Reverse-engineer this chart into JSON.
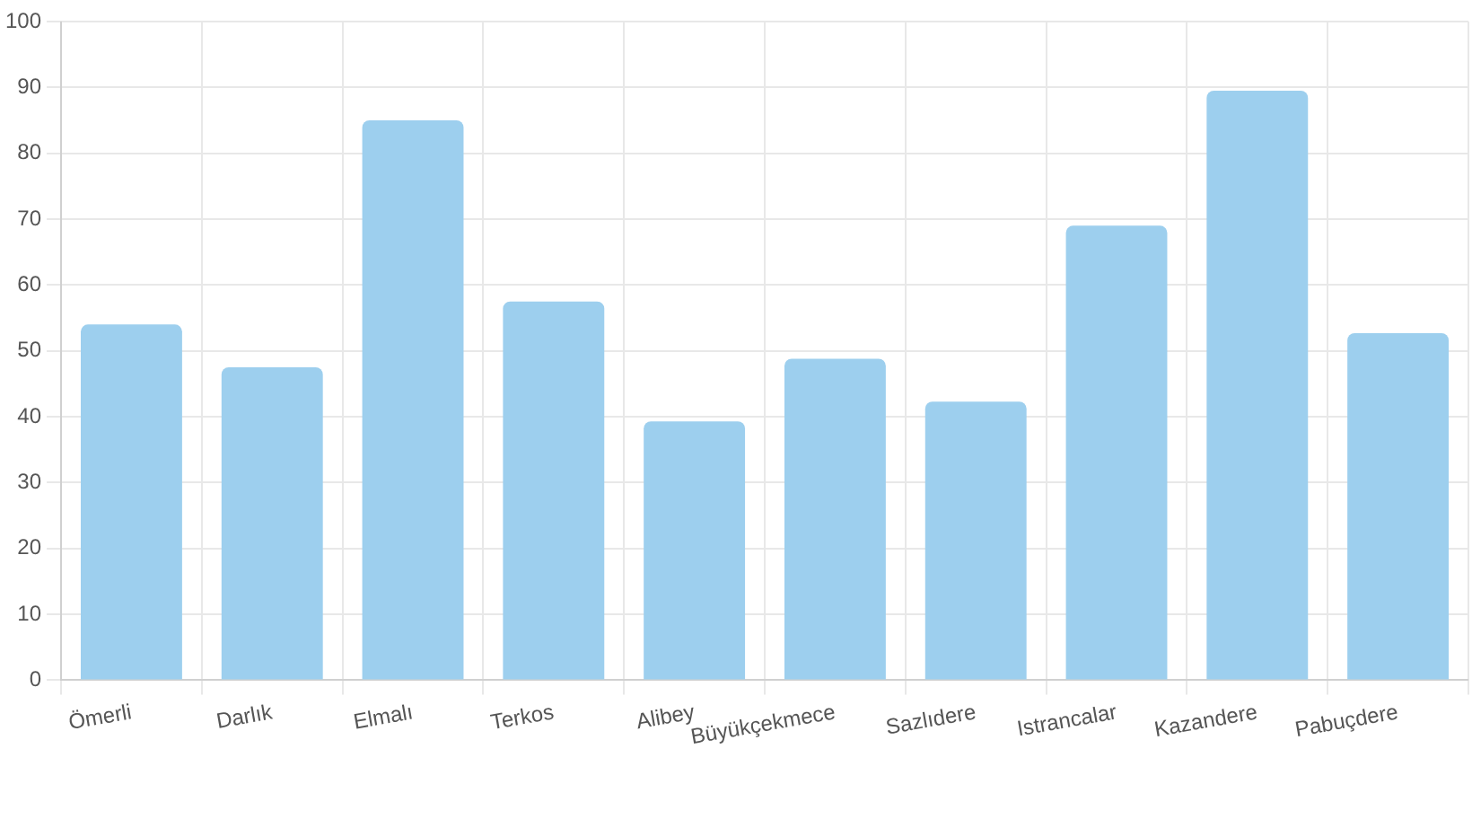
{
  "chart_data": {
    "type": "bar",
    "categories": [
      "Ömerli",
      "Darlık",
      "Elmalı",
      "Terkos",
      "Alibey",
      "Büyükçekmece",
      "Sazlıdere",
      "Istrancalar",
      "Kazandere",
      "Pabuçdere"
    ],
    "series": [
      {
        "color": "#9dcfee",
        "values": [
          54,
          47.5,
          85,
          57.5,
          39.3,
          48.8,
          42.3,
          69,
          89.5,
          52.7
        ]
      }
    ],
    "ylim": [
      0,
      100
    ],
    "yticks": [
      0,
      10,
      20,
      30,
      40,
      50,
      60,
      70,
      80,
      90,
      100
    ],
    "grid": true,
    "legend": false
  }
}
